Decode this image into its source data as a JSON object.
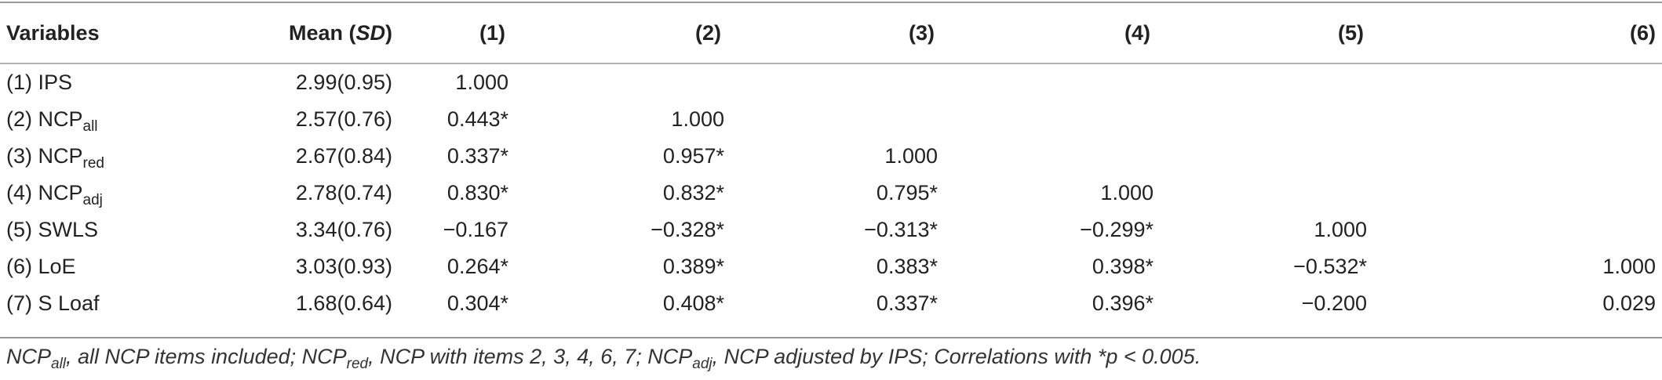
{
  "table": {
    "headers": {
      "variables": "Variables",
      "mean_prefix": "Mean (",
      "mean_sd": "SD",
      "mean_suffix": ")",
      "cols": [
        "(1)",
        "(2)",
        "(3)",
        "(4)",
        "(5)",
        "(6)"
      ]
    },
    "rows": [
      {
        "label": "(1) IPS",
        "label_sub": "",
        "mean": "2.99(0.95)",
        "cells": [
          "1.000",
          "",
          "",
          "",
          "",
          ""
        ]
      },
      {
        "label": "(2) NCP",
        "label_sub": "all",
        "mean": "2.57(0.76)",
        "cells": [
          "0.443*",
          "1.000",
          "",
          "",
          "",
          ""
        ]
      },
      {
        "label": "(3) NCP",
        "label_sub": "red",
        "mean": "2.67(0.84)",
        "cells": [
          "0.337*",
          "0.957*",
          "1.000",
          "",
          "",
          ""
        ]
      },
      {
        "label": "(4) NCP",
        "label_sub": "adj",
        "mean": "2.78(0.74)",
        "cells": [
          "0.830*",
          "0.832*",
          "0.795*",
          "1.000",
          "",
          ""
        ]
      },
      {
        "label": "(5) SWLS",
        "label_sub": "",
        "mean": "3.34(0.76)",
        "cells": [
          "−0.167",
          "−0.328*",
          "−0.313*",
          "−0.299*",
          "1.000",
          ""
        ]
      },
      {
        "label": "(6) LoE",
        "label_sub": "",
        "mean": "3.03(0.93)",
        "cells": [
          "0.264*",
          "0.389*",
          "0.383*",
          "0.398*",
          "−0.532*",
          "1.000"
        ]
      },
      {
        "label": "(7) S Loaf",
        "label_sub": "",
        "mean": "1.68(0.64)",
        "cells": [
          "0.304*",
          "0.408*",
          "0.337*",
          "0.396*",
          "−0.200",
          "0.029"
        ]
      }
    ]
  },
  "footnote": {
    "p1_main": "NCP",
    "p1_sub": "all",
    "p2": ", all NCP items included; NCP",
    "p2_sub": "red",
    "p3": ", NCP with items 2, 3, 4, 6, 7; NCP",
    "p3_sub": "adj",
    "p4": ", NCP adjusted by IPS; Correlations with *p < 0.005."
  }
}
